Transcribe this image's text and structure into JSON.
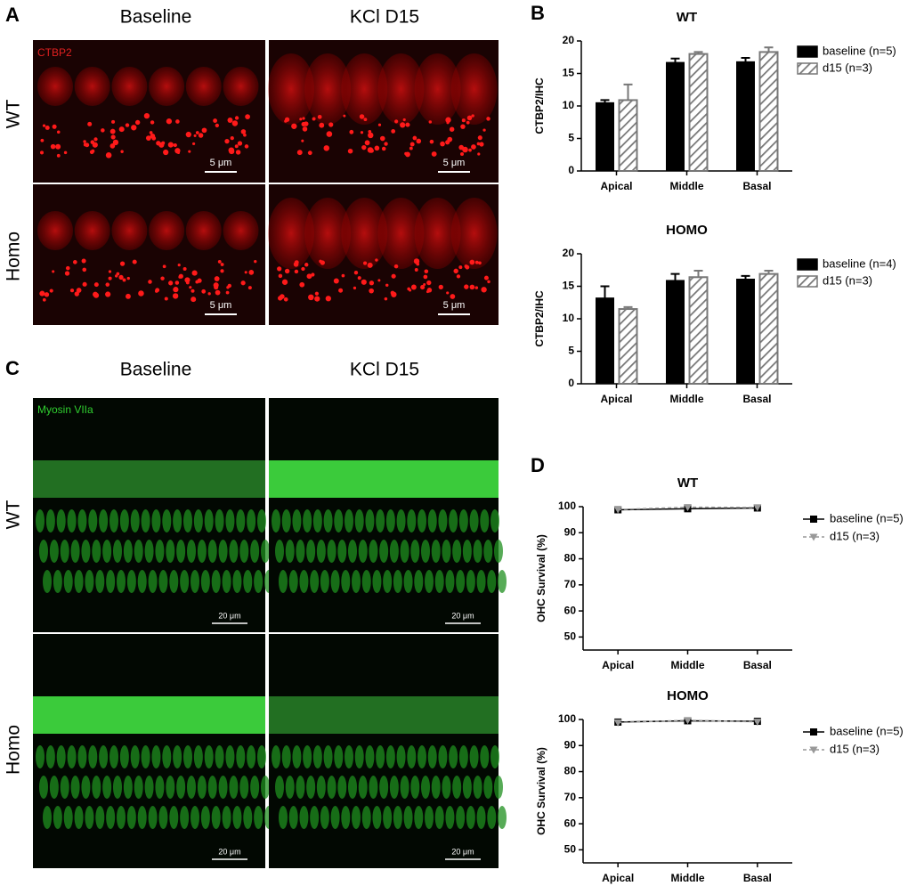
{
  "panels": {
    "A": {
      "label": "A",
      "columns": [
        "Baseline",
        "KCl D15"
      ],
      "rows": [
        "WT",
        "Homo"
      ],
      "stain": "CTBP2",
      "scale_bars": [
        "5 μm",
        "5 μm",
        "5 μm",
        "5 μm"
      ]
    },
    "B": {
      "label": "B"
    },
    "C": {
      "label": "C",
      "columns": [
        "Baseline",
        "KCl D15"
      ],
      "rows": [
        "WT",
        "Homo"
      ],
      "stain": "Myosin VIIa",
      "scale_bars": [
        "20 μm",
        "20 μm",
        "20 μm",
        "20 μm"
      ]
    },
    "D": {
      "label": "D"
    }
  },
  "chart_data": [
    {
      "type": "bar",
      "title": "WT",
      "y_label": "CTBP2/IHC",
      "categories": [
        "Apical",
        "Middle",
        "Basal"
      ],
      "series": [
        {
          "name": "baseline (n=5)",
          "color": "#000000",
          "values": [
            10.5,
            16.7,
            16.8
          ],
          "errors": [
            0.4,
            0.6,
            0.6
          ]
        },
        {
          "name": "d15 (n=3)",
          "color": "#777777",
          "hatched": true,
          "values": [
            10.9,
            18.0,
            18.3
          ],
          "errors": [
            2.4,
            0.3,
            0.7
          ]
        }
      ],
      "ylim": [
        0,
        20
      ],
      "yticks": [
        0,
        5,
        10,
        15,
        20
      ]
    },
    {
      "type": "bar",
      "title": "HOMO",
      "y_label": "CTBP2/IHC",
      "categories": [
        "Apical",
        "Middle",
        "Basal"
      ],
      "series": [
        {
          "name": "baseline (n=4)",
          "color": "#000000",
          "values": [
            13.2,
            15.9,
            16.1
          ],
          "errors": [
            1.8,
            1.0,
            0.5
          ]
        },
        {
          "name": "d15 (n=3)",
          "color": "#777777",
          "hatched": true,
          "values": [
            11.5,
            16.4,
            16.9
          ],
          "errors": [
            0.3,
            1.0,
            0.5
          ]
        }
      ],
      "ylim": [
        0,
        20
      ],
      "yticks": [
        0,
        5,
        10,
        15,
        20
      ]
    },
    {
      "type": "line",
      "title": "WT",
      "y_label": "OHC Survival (%)",
      "categories": [
        "Apical",
        "Middle",
        "Basal"
      ],
      "series": [
        {
          "name": "baseline (n=5)",
          "color": "#000000",
          "marker": "square",
          "values": [
            98.8,
            99.2,
            99.5
          ]
        },
        {
          "name": "d15 (n=3)",
          "color": "#999999",
          "marker": "triangle",
          "dashed": true,
          "values": [
            98.9,
            99.8,
            99.7
          ]
        }
      ],
      "ylim": [
        45,
        100
      ],
      "yticks": [
        50,
        60,
        70,
        80,
        90,
        100
      ]
    },
    {
      "type": "line",
      "title": "HOMO",
      "y_label": "OHC Survival (%)",
      "categories": [
        "Apical",
        "Middle",
        "Basal"
      ],
      "series": [
        {
          "name": "baseline (n=5)",
          "color": "#000000",
          "marker": "square",
          "values": [
            99.0,
            99.5,
            99.3
          ]
        },
        {
          "name": "d15 (n=3)",
          "color": "#999999",
          "marker": "triangle",
          "dashed": true,
          "values": [
            98.8,
            99.7,
            99.1
          ]
        }
      ],
      "ylim": [
        45,
        100
      ],
      "yticks": [
        50,
        60,
        70,
        80,
        90,
        100
      ]
    }
  ]
}
